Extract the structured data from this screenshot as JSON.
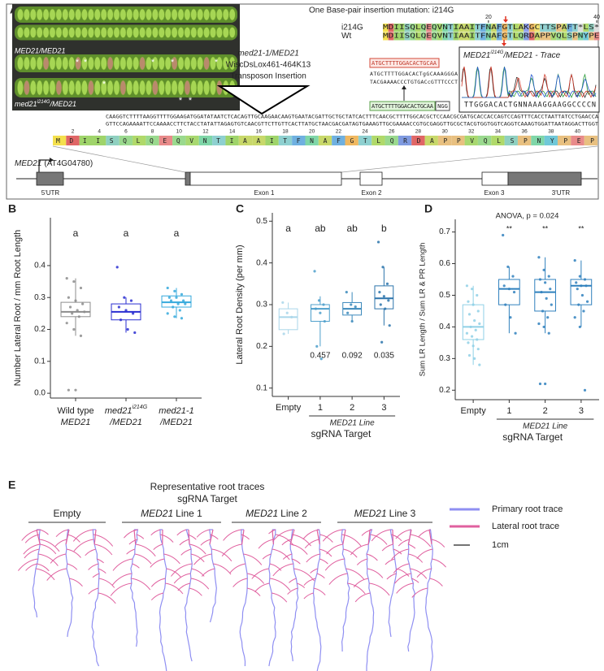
{
  "panel_labels": [
    "A",
    "B",
    "C",
    "D",
    "E"
  ],
  "panel_a": {
    "photo_labels": {
      "top": "MED21/MED21",
      "bottom": {
        "text": "med21",
        "sup": "i214G",
        "rest": "/MED21"
      },
      "asterisk": "*"
    },
    "mutation": {
      "title": "One Base-pair insertion mutation: i214G",
      "positions": [
        20,
        40
      ],
      "rows": [
        {
          "label": "i214G",
          "sequence": "MDIISQLQEQVNTIAAITFNAFGTLAKGCTTSPAFT*LS*"
        },
        {
          "label": "Wt",
          "sequence": "MDIISQLQEQVNTIAAITFNAFGTLQRDAPPVQLSPNYPE"
        }
      ]
    },
    "crispr": {
      "guide": "ATGCTTTTGGACACTGCAA",
      "top_strand": "ATGCTTTTGGACACTgGCAAAGGGA",
      "bottom_strand": "TACGAAAACCCTGTGACcGTTTCCCT",
      "guide_target": "ATGCTTTTGGACACTGCAA",
      "pam": "NGG"
    },
    "trace": {
      "gene": "MED21",
      "sup": "i214G",
      "rest": "/MED21 - Trace",
      "sequence": "TTGGGACACTGNNAAAGGAAGGCCCCN"
    },
    "transposon": {
      "allele": "med21-1/MED21",
      "line": "WiscDsLox461-464K13",
      "label": "Transposon Insertion"
    },
    "dna": [
      "CAAGGTCTTTTAAGGTTTTGGAAGATGGATATAATCTCACAGTTGCAAGAACAAGTGAATACGATTGCTGCTATCACTTTCAACGCTTTTGGCACGCTCCAACGCGATGCACCACCAGTCCAGTTTCACCTAATTATCCTGAACCA",
      "GTTCCAGAAAATTCCAAAACCTTCTACCTATATTAGAGTGTCAACGTTCTTGTTCACTTATGCTAACGACGATAGTGAAAGTTGCGAAAACCGTGCGAGGTTGCGCTACGTGGTGGTCAGGTCAAAGTGGATTAATAGGACTTGGT"
    ],
    "protein": {
      "sequence": "MDIISQLQEQVNTIAAITFNAFGTLQRDAPPVQLSPNYPEP",
      "positions": [
        2,
        4,
        6,
        8,
        10,
        12,
        14,
        16,
        18,
        20,
        22,
        24,
        26,
        28,
        30,
        32,
        34,
        36,
        38,
        40
      ]
    },
    "gene": {
      "name": "MED21",
      "locus": "(AT4G04780)",
      "features": [
        "5'UTR",
        "Exon 1",
        "Exon 2",
        "Exon 3",
        "3'UTR"
      ]
    }
  },
  "chart_data": [
    {
      "type": "box",
      "y_label": "Number Lateral Root / mm Root Length",
      "ylim": [
        -0.015,
        0.55
      ],
      "yticks": [
        {
          "value": 0,
          "label": "0.0"
        },
        0.1,
        0.2,
        0.3,
        0.4
      ],
      "categories": [
        [
          "Wild type",
          "MED21"
        ],
        [
          {
            "text": "med21",
            "sup": "i214G"
          },
          "/MED21"
        ],
        [
          "med21-1",
          "/MED21"
        ]
      ],
      "colors": [
        "#8c8c8c",
        "#2a2ed1",
        "#35a9dc"
      ],
      "letters": [
        "a",
        "a",
        "a"
      ],
      "boxes": [
        {
          "whislo": 0.18,
          "q1": 0.24,
          "med": 0.255,
          "q3": 0.285,
          "whishi": 0.36,
          "points": [
            0.36,
            0.35,
            0.33,
            0.3,
            0.29,
            0.28,
            0.27,
            0.26,
            0.255,
            0.25,
            0.24,
            0.22,
            0.2,
            0.18,
            0.01,
            0.01
          ]
        },
        {
          "whislo": 0.19,
          "q1": 0.23,
          "med": 0.255,
          "q3": 0.28,
          "whishi": 0.3,
          "points": [
            0.395,
            0.3,
            0.29,
            0.27,
            0.26,
            0.25,
            0.23,
            0.2,
            0.19
          ]
        },
        {
          "whislo": 0.235,
          "q1": 0.27,
          "med": 0.285,
          "q3": 0.305,
          "whishi": 0.33,
          "points": [
            0.33,
            0.32,
            0.31,
            0.3,
            0.3,
            0.29,
            0.29,
            0.28,
            0.28,
            0.27,
            0.26,
            0.25,
            0.24,
            0.235
          ]
        }
      ]
    },
    {
      "type": "box",
      "y_label": "Lateral Root Density (per mm)",
      "ylim": [
        0.08,
        0.52
      ],
      "yticks": [
        0.1,
        0.2,
        0.3,
        0.4,
        0.5
      ],
      "categories": [
        "Empty",
        "1",
        "2",
        "3"
      ],
      "group_label": "MED21 Line",
      "x_label": "sgRNA Target",
      "colors": [
        "#a9d6ea",
        "#4d9fcb",
        "#3b89bb",
        "#2c74ab"
      ],
      "letters": [
        "a",
        "ab",
        "ab",
        "b"
      ],
      "p_values": [
        null,
        0.457,
        0.092,
        0.035
      ],
      "boxes": [
        {
          "whislo": 0.23,
          "q1": 0.24,
          "med": 0.27,
          "q3": 0.29,
          "whishi": 0.305,
          "points": [
            0.305,
            0.28,
            0.27,
            0.23
          ]
        },
        {
          "whislo": 0.2,
          "q1": 0.26,
          "med": 0.29,
          "q3": 0.3,
          "whishi": 0.32,
          "points": [
            0.38,
            0.31,
            0.3,
            0.29,
            0.28,
            0.26,
            0.2,
            0.17
          ]
        },
        {
          "whislo": 0.26,
          "q1": 0.275,
          "med": 0.29,
          "q3": 0.305,
          "whishi": 0.33,
          "points": [
            0.33,
            0.3,
            0.295,
            0.28,
            0.26
          ]
        },
        {
          "whislo": 0.25,
          "q1": 0.29,
          "med": 0.315,
          "q3": 0.345,
          "whishi": 0.39,
          "points": [
            0.45,
            0.39,
            0.35,
            0.33,
            0.32,
            0.31,
            0.3,
            0.29,
            0.25,
            0.21
          ]
        }
      ]
    },
    {
      "type": "box",
      "title": "ANOVA, p = 0.024",
      "y_label": "Sum LR Length / Sum LR & PR Length",
      "ylim": [
        0.17,
        0.74
      ],
      "yticks": [
        0.2,
        0.3,
        0.4,
        0.5,
        0.6,
        0.7
      ],
      "categories": [
        "Empty",
        "1",
        "2",
        "3"
      ],
      "group_label": "MED21 Line",
      "x_label": "sgRNA Target",
      "colors": [
        "#8fd0e6",
        "#2f80bd",
        "#2f80bd",
        "#2f80bd"
      ],
      "stars": [
        null,
        "**",
        "**",
        "**"
      ],
      "boxes": [
        {
          "whislo": 0.28,
          "q1": 0.36,
          "med": 0.4,
          "q3": 0.47,
          "whishi": 0.53,
          "points": [
            0.53,
            0.52,
            0.5,
            0.48,
            0.47,
            0.45,
            0.44,
            0.42,
            0.41,
            0.4,
            0.39,
            0.38,
            0.37,
            0.36,
            0.35,
            0.34,
            0.33,
            0.31,
            0.3,
            0.28
          ]
        },
        {
          "whislo": 0.38,
          "q1": 0.47,
          "med": 0.52,
          "q3": 0.55,
          "whishi": 0.59,
          "points": [
            0.69,
            0.59,
            0.56,
            0.53,
            0.52,
            0.51,
            0.47,
            0.43,
            0.38
          ]
        },
        {
          "whislo": 0.38,
          "q1": 0.45,
          "med": 0.51,
          "q3": 0.55,
          "whishi": 0.62,
          "points": [
            0.62,
            0.58,
            0.56,
            0.55,
            0.54,
            0.52,
            0.51,
            0.49,
            0.47,
            0.45,
            0.43,
            0.41,
            0.4,
            0.38,
            0.22,
            0.22
          ]
        },
        {
          "whislo": 0.4,
          "q1": 0.47,
          "med": 0.53,
          "q3": 0.55,
          "whishi": 0.61,
          "points": [
            0.61,
            0.56,
            0.55,
            0.54,
            0.53,
            0.53,
            0.52,
            0.5,
            0.48,
            0.47,
            0.45,
            0.43,
            0.4,
            0.2
          ]
        }
      ]
    }
  ],
  "panel_e": {
    "title": "Representative root traces",
    "subtitle": "sgRNA Target",
    "groups": [
      {
        "text": "Empty"
      },
      {
        "gene": "MED21",
        "text": "Line 1"
      },
      {
        "gene": "MED21",
        "text": "Line 2"
      },
      {
        "gene": "MED21",
        "text": "Line 3"
      }
    ],
    "legend": [
      {
        "name": "Primary root trace",
        "color": "#8f8ff2"
      },
      {
        "name": "Lateral root trace",
        "color": "#e0609f"
      }
    ],
    "scale": "1cm"
  }
}
